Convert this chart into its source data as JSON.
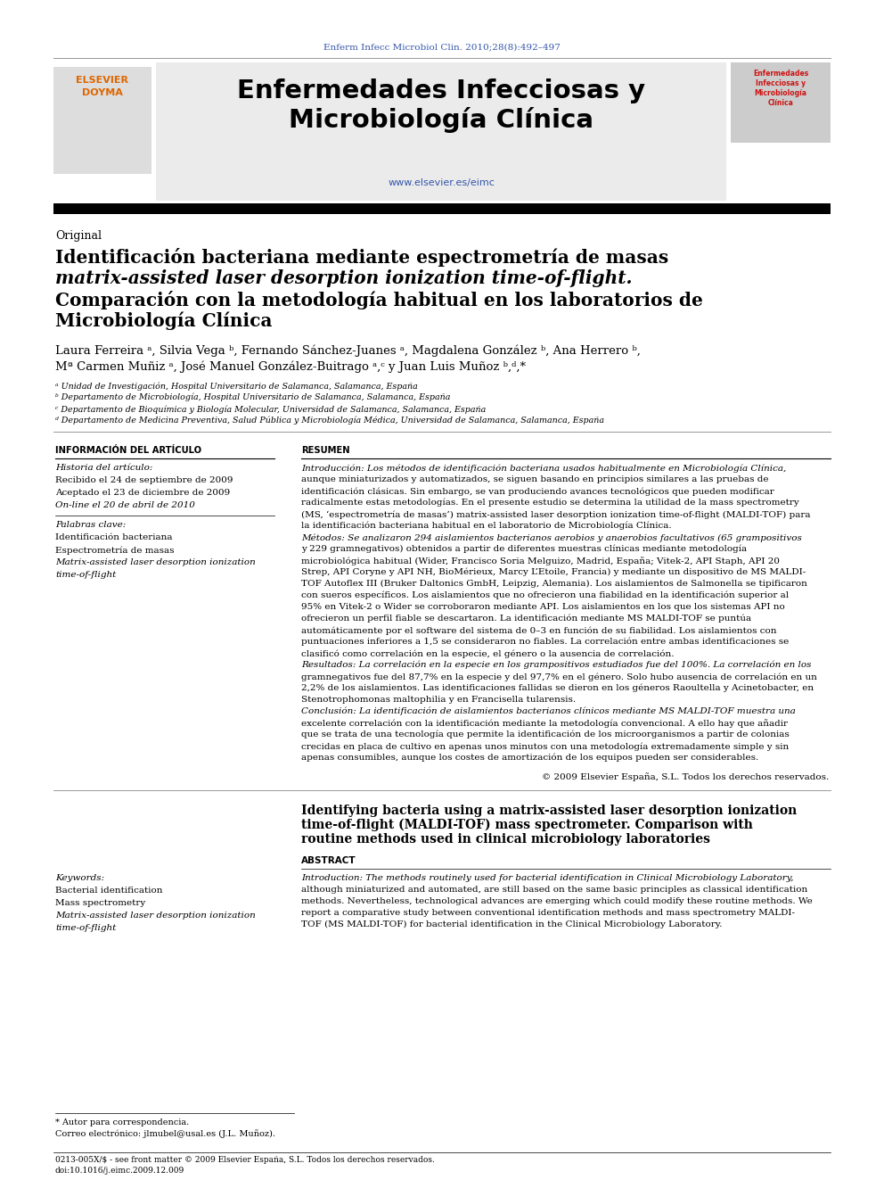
{
  "page_width": 9.92,
  "page_height": 13.23,
  "dpi": 100,
  "bg_color": "#ffffff",
  "journal_citation": "Enferm Infecc Microbiol Clin. 2010;28(8):492–497",
  "journal_citation_color": "#3355aa",
  "journal_name_line1": "Enfermedades Infecciosas y",
  "journal_name_line2": "Microbiología Clínica",
  "journal_url": "www.elsevier.es/eimc",
  "section_label": "Original",
  "info_header": "INFORMACIÓN DEL ARTÍCULO",
  "resumen_header": "RESUMEN",
  "history_header": "Historia del artículo:",
  "history_line1": "Recibido el 24 de septiembre de 2009",
  "history_line2": "Aceptado el 23 de diciembre de 2009",
  "history_line3": "On-line el 20 de abril de 2010",
  "keywords_header": "Palabras clave:",
  "keyword1": "Identificación bacteriana",
  "keyword2": "Espectrometría de masas",
  "keyword3_italic": "Matrix-assisted laser desorption ionization",
  "keyword4_italic": "time-of-flight",
  "affil_a": "ᵃ Unidad de Investigación, Hospital Universitario de Salamanca, Salamanca, España",
  "affil_b": "ᵇ Departamento de Microbiología, Hospital Universitario de Salamanca, Salamanca, España",
  "affil_c": "ᶜ Departamento de Bioquímica y Biología Molecular, Universidad de Salamanca, Salamanca, España",
  "affil_d": "ᵈ Departamento de Medicina Preventiva, Salud Pública y Microbiología Médica, Universidad de Salamanca, Salamanca, España",
  "copyright_text": "© 2009 Elsevier España, S.L. Todos los derechos reservados.",
  "english_title1": "Identifying bacteria using a matrix-assisted laser desorption ionization",
  "english_title2": "time-of-flight (MALDI-TOF) mass spectrometer. Comparison with",
  "english_title3": "routine methods used in clinical microbiology laboratories",
  "abstract_header": "ABSTRACT",
  "keywords_en_header": "Keywords:",
  "keyword_en1": "Bacterial identification",
  "keyword_en2": "Mass spectrometry",
  "keyword_en3_italic": "Matrix-assisted laser desorption ionization",
  "keyword_en4_italic": "time-of-flight",
  "footnote_star": "* Autor para correspondencia.",
  "footnote_correo": "Correo electrónico: jlmubel@usal.es (J.L. Muñoz).",
  "footer_issn": "0213-005X/$ - see front matter © 2009 Elsevier España, S.L. Todos los derechos reservados.",
  "footer_doi": "doi:10.1016/j.eimc.2009.12.009"
}
